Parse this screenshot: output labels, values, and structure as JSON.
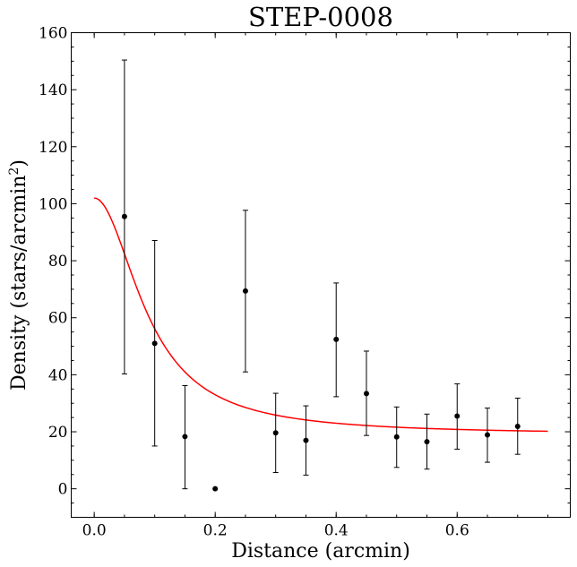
{
  "chart_data": {
    "type": "scatter",
    "title": "STEP-0008",
    "xlabel": "Distance (arcmin)",
    "ylabel_main": "Density (stars/arcmin",
    "ylabel_sup": "2",
    "ylabel_close": ")",
    "xlim": [
      -0.038,
      0.787
    ],
    "ylim": [
      -10,
      160
    ],
    "xticks": [
      0.0,
      0.2,
      0.4,
      0.6
    ],
    "xtick_labels": [
      "0.0",
      "0.2",
      "0.4",
      "0.6"
    ],
    "yticks": [
      0,
      20,
      40,
      60,
      80,
      100,
      120,
      140,
      160
    ],
    "ytick_labels": [
      "0",
      "20",
      "40",
      "60",
      "80",
      "100",
      "120",
      "140",
      "160"
    ],
    "series": [
      {
        "name": "observed",
        "kind": "errorbar",
        "color": "#000000",
        "x": [
          0.05,
          0.1,
          0.15,
          0.2,
          0.25,
          0.3,
          0.35,
          0.4,
          0.45,
          0.5,
          0.55,
          0.6,
          0.65,
          0.7
        ],
        "y": [
          95.5,
          51.0,
          18.3,
          0.0,
          69.4,
          19.6,
          17.0,
          52.4,
          33.4,
          18.2,
          16.5,
          25.5,
          18.9,
          21.9
        ],
        "yerr_low": [
          40.3,
          15.0,
          0.0,
          0.0,
          41.0,
          5.7,
          4.8,
          32.3,
          18.7,
          7.5,
          6.9,
          13.9,
          9.3,
          12.1
        ],
        "yerr_high": [
          150.4,
          87.1,
          36.2,
          0.0,
          97.7,
          33.5,
          29.1,
          72.2,
          48.3,
          28.7,
          26.2,
          36.8,
          28.3,
          31.8
        ]
      },
      {
        "name": "profile-fit",
        "kind": "line",
        "color": "#ff0000",
        "model": {
          "background": 19.0,
          "central": 83.0,
          "core_radius": 0.09,
          "x_start": 0.0,
          "x_end": 0.75
        }
      }
    ]
  }
}
